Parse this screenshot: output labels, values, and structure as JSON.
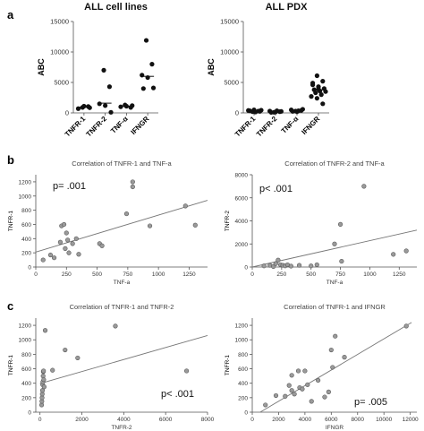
{
  "panel_labels": [
    "a",
    "b",
    "c"
  ],
  "chart_data": [
    {
      "panel": "a",
      "type": "scatter",
      "title": "ALL cell lines",
      "ylabel": "ABC",
      "categories": [
        "TNFR-1",
        "TNFR-2",
        "TNF-α",
        "IFNGR"
      ],
      "ylim": [
        0,
        15000
      ],
      "yticks": [
        0,
        5000,
        10000,
        15000
      ],
      "ytick_labels": [
        "0",
        "5000",
        "10000",
        "15000"
      ],
      "points": [
        [
          0,
          900
        ],
        [
          0,
          1050
        ],
        [
          0,
          700
        ],
        [
          0,
          1100
        ],
        [
          0,
          850
        ],
        [
          1,
          7000
        ],
        [
          1,
          4300
        ],
        [
          1,
          1500
        ],
        [
          1,
          1200
        ],
        [
          1,
          100
        ],
        [
          2,
          1300
        ],
        [
          2,
          900
        ],
        [
          2,
          1000
        ],
        [
          2,
          1100
        ],
        [
          2,
          1200
        ],
        [
          3,
          11900
        ],
        [
          3,
          8000
        ],
        [
          3,
          6200
        ],
        [
          3,
          5800
        ],
        [
          3,
          4100
        ],
        [
          3,
          4000
        ]
      ],
      "medians": [
        950,
        1600,
        1100,
        6000
      ]
    },
    {
      "panel": "a",
      "type": "scatter",
      "title": "ALL PDX",
      "ylabel": "ABC",
      "categories": [
        "TNFR-1",
        "TNFR-2",
        "TNF-α",
        "IFNGR"
      ],
      "ylim": [
        0,
        15000
      ],
      "yticks": [
        0,
        5000,
        10000,
        15000
      ],
      "ytick_labels": [
        "0",
        "5000",
        "10000",
        "15000"
      ],
      "points": [
        [
          0,
          200
        ],
        [
          0,
          300
        ],
        [
          0,
          400
        ],
        [
          0,
          500
        ],
        [
          0,
          250
        ],
        [
          0,
          350
        ],
        [
          0,
          150
        ],
        [
          0,
          450
        ],
        [
          1,
          100
        ],
        [
          1,
          200
        ],
        [
          1,
          300
        ],
        [
          1,
          150
        ],
        [
          1,
          250
        ],
        [
          1,
          80
        ],
        [
          1,
          350
        ],
        [
          2,
          300
        ],
        [
          2,
          400
        ],
        [
          2,
          500
        ],
        [
          2,
          200
        ],
        [
          2,
          600
        ],
        [
          2,
          250
        ],
        [
          2,
          350
        ],
        [
          3,
          6100
        ],
        [
          3,
          5200
        ],
        [
          3,
          4900
        ],
        [
          3,
          4300
        ],
        [
          3,
          4000
        ],
        [
          3,
          3800
        ],
        [
          3,
          3600
        ],
        [
          3,
          3500
        ],
        [
          3,
          3300
        ],
        [
          3,
          3000
        ],
        [
          3,
          2700
        ],
        [
          3,
          2400
        ],
        [
          3,
          1500
        ],
        [
          3,
          4600
        ],
        [
          3,
          3900
        ]
      ],
      "medians": [
        300,
        200,
        350,
        3800
      ]
    },
    {
      "panel": "b",
      "type": "scatter",
      "title": "Correlation of TNFR-1 and TNF-a",
      "xlabel": "TNF-a",
      "ylabel": "TNFR-1",
      "xlim": [
        0,
        1400
      ],
      "ylim": [
        0,
        1300
      ],
      "xticks": [
        0,
        250,
        500,
        750,
        1000,
        1250
      ],
      "xtick_labels": [
        "0",
        "250",
        "500",
        "750",
        "1000",
        "1250"
      ],
      "yticks": [
        0,
        200,
        400,
        600,
        800,
        1000,
        1200
      ],
      "ytick_labels": [
        "0",
        "200",
        "400",
        "600",
        "800",
        "1000",
        "1200"
      ],
      "annotation": "p= .001",
      "points": [
        [
          60,
          100
        ],
        [
          120,
          170
        ],
        [
          150,
          130
        ],
        [
          200,
          350
        ],
        [
          210,
          580
        ],
        [
          230,
          600
        ],
        [
          240,
          260
        ],
        [
          250,
          480
        ],
        [
          260,
          380
        ],
        [
          270,
          200
        ],
        [
          300,
          330
        ],
        [
          330,
          400
        ],
        [
          350,
          180
        ],
        [
          520,
          330
        ],
        [
          540,
          300
        ],
        [
          740,
          750
        ],
        [
          790,
          1200
        ],
        [
          790,
          1130
        ],
        [
          930,
          580
        ],
        [
          1220,
          860
        ],
        [
          1300,
          590
        ]
      ],
      "fit": [
        [
          0,
          210
        ],
        [
          1400,
          940
        ]
      ]
    },
    {
      "panel": "b",
      "type": "scatter",
      "title": "Correlation of TNFR-2 and TNF-a",
      "xlabel": "TNF-a",
      "ylabel": "TNFR-2",
      "xlim": [
        0,
        1400
      ],
      "ylim": [
        0,
        8000
      ],
      "xticks": [
        0,
        250,
        500,
        750,
        1000,
        1250
      ],
      "xtick_labels": [
        "0",
        "250",
        "500",
        "750",
        "1000",
        "1250"
      ],
      "yticks": [
        0,
        2000,
        4000,
        6000,
        8000
      ],
      "ytick_labels": [
        "0",
        "2000",
        "4000",
        "6000",
        "8000"
      ],
      "annotation": "p< .001",
      "points": [
        [
          100,
          100
        ],
        [
          150,
          150
        ],
        [
          180,
          50
        ],
        [
          200,
          300
        ],
        [
          220,
          600
        ],
        [
          240,
          200
        ],
        [
          260,
          150
        ],
        [
          280,
          100
        ],
        [
          300,
          200
        ],
        [
          330,
          80
        ],
        [
          400,
          150
        ],
        [
          500,
          100
        ],
        [
          550,
          200
        ],
        [
          700,
          2000
        ],
        [
          750,
          3700
        ],
        [
          760,
          500
        ],
        [
          950,
          7000
        ],
        [
          1200,
          1100
        ],
        [
          1310,
          1400
        ]
      ],
      "fit": [
        [
          0,
          0
        ],
        [
          1400,
          3200
        ]
      ]
    },
    {
      "panel": "c",
      "type": "scatter",
      "title": "Correlation of TNFR-1 and TNFR-2",
      "xlabel": "TNFR-2",
      "ylabel": "TNFR-1",
      "xlim": [
        -200,
        8000
      ],
      "ylim": [
        0,
        1300
      ],
      "xticks": [
        0,
        2000,
        4000,
        6000,
        8000
      ],
      "xtick_labels": [
        "0",
        "2000",
        "4000",
        "6000",
        "8000"
      ],
      "yticks": [
        0,
        200,
        400,
        600,
        800,
        1000,
        1200
      ],
      "ytick_labels": [
        "0",
        "200",
        "400",
        "600",
        "800",
        "1000",
        "1200"
      ],
      "annotation": "p< .001",
      "points": [
        [
          80,
          100
        ],
        [
          90,
          150
        ],
        [
          100,
          200
        ],
        [
          110,
          250
        ],
        [
          120,
          300
        ],
        [
          130,
          380
        ],
        [
          140,
          420
        ],
        [
          150,
          500
        ],
        [
          160,
          560
        ],
        [
          170,
          570
        ],
        [
          180,
          450
        ],
        [
          200,
          350
        ],
        [
          250,
          1130
        ],
        [
          600,
          580
        ],
        [
          1200,
          860
        ],
        [
          1800,
          750
        ],
        [
          3600,
          1190
        ],
        [
          7000,
          570
        ]
      ],
      "fit": [
        [
          0,
          395
        ],
        [
          8000,
          1060
        ]
      ]
    },
    {
      "panel": "c",
      "type": "scatter",
      "title": "Correlation of TNFR-1 and IFNGR",
      "xlabel": "IFNGR",
      "ylabel": "TNFR-1",
      "xlim": [
        0,
        12500
      ],
      "ylim": [
        0,
        1300
      ],
      "xticks": [
        0,
        2000,
        4000,
        6000,
        8000,
        10000,
        12000
      ],
      "xtick_labels": [
        "0",
        "2000",
        "4000",
        "6000",
        "8000",
        "10000",
        "12000"
      ],
      "yticks": [
        0,
        200,
        400,
        600,
        800,
        1000,
        1200
      ],
      "ytick_labels": [
        "0",
        "200",
        "400",
        "600",
        "800",
        "1000",
        "1200"
      ],
      "annotation": "p= .005",
      "points": [
        [
          1000,
          100
        ],
        [
          1800,
          230
        ],
        [
          2500,
          220
        ],
        [
          2800,
          370
        ],
        [
          3000,
          300
        ],
        [
          3000,
          510
        ],
        [
          3200,
          250
        ],
        [
          3500,
          570
        ],
        [
          3600,
          340
        ],
        [
          3800,
          320
        ],
        [
          4000,
          570
        ],
        [
          4200,
          380
        ],
        [
          4500,
          150
        ],
        [
          5000,
          440
        ],
        [
          5500,
          210
        ],
        [
          5800,
          280
        ],
        [
          6000,
          860
        ],
        [
          6100,
          620
        ],
        [
          6300,
          1050
        ],
        [
          7000,
          760
        ],
        [
          11700,
          1190
        ]
      ],
      "fit": [
        [
          600,
          0
        ],
        [
          12100,
          1240
        ]
      ]
    }
  ]
}
